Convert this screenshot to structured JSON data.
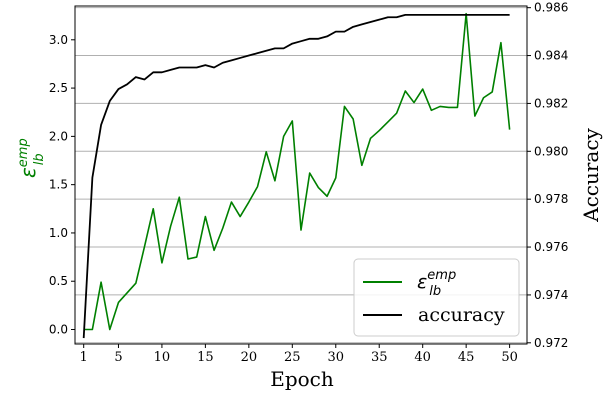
{
  "chart_data": {
    "type": "line",
    "xlabel": "Epoch",
    "ylabel_left": {
      "base": "ε",
      "sub": "lb",
      "sup": "emp",
      "color": "#008000"
    },
    "ylabel_right": "Accuracy",
    "xlim": [
      0,
      52
    ],
    "ylim_left": [
      -0.15,
      3.35
    ],
    "ylim_right": [
      0.97195,
      0.98607
    ],
    "x_ticks": [
      1,
      5,
      10,
      15,
      20,
      25,
      30,
      35,
      40,
      45,
      50
    ],
    "y_ticks_left": [
      "0.0",
      "0.5",
      "1.0",
      "1.5",
      "2.0",
      "2.5",
      "3.0"
    ],
    "y_ticks_right": [
      "0.972",
      "0.974",
      "0.976",
      "0.978",
      "0.980",
      "0.982",
      "0.984",
      "0.986"
    ],
    "grid": "horizontal (right axis ticks)",
    "legend_position": "bottom-right",
    "x": [
      1,
      2,
      3,
      4,
      5,
      6,
      7,
      8,
      9,
      10,
      11,
      12,
      13,
      14,
      15,
      16,
      17,
      18,
      19,
      20,
      21,
      22,
      23,
      24,
      25,
      26,
      27,
      28,
      29,
      30,
      31,
      32,
      33,
      34,
      35,
      36,
      37,
      38,
      39,
      40,
      41,
      42,
      43,
      44,
      45,
      46,
      47,
      48,
      49,
      50
    ],
    "series": [
      {
        "name": "ε_lb^emp",
        "legend": {
          "base": "ε",
          "sub": "lb",
          "sup": "emp"
        },
        "axis": "left",
        "color": "#008000",
        "values": [
          0.0,
          0.0,
          0.49,
          0.0,
          0.28,
          0.38,
          0.48,
          0.86,
          1.25,
          0.69,
          1.07,
          1.37,
          0.73,
          0.75,
          1.17,
          0.82,
          1.05,
          1.32,
          1.17,
          1.32,
          1.48,
          1.84,
          1.54,
          2.0,
          2.16,
          1.03,
          1.62,
          1.47,
          1.38,
          1.57,
          2.31,
          2.18,
          1.7,
          1.98,
          2.06,
          2.15,
          2.24,
          2.47,
          2.35,
          2.49,
          2.27,
          2.31,
          2.3,
          2.3,
          3.27,
          2.21,
          2.4,
          2.46,
          2.97,
          2.07
        ]
      },
      {
        "name": "accuracy",
        "axis": "right",
        "color": "#000000",
        "values": [
          0.9722,
          0.9789,
          0.9811,
          0.9821,
          0.9826,
          0.9828,
          0.9831,
          0.983,
          0.9833,
          0.9833,
          0.9834,
          0.9835,
          0.9835,
          0.9835,
          0.9836,
          0.9835,
          0.9837,
          0.9838,
          0.9839,
          0.984,
          0.9841,
          0.9842,
          0.9843,
          0.9843,
          0.9845,
          0.9846,
          0.9847,
          0.9847,
          0.9848,
          0.985,
          0.985,
          0.9852,
          0.9853,
          0.9854,
          0.9855,
          0.9856,
          0.9856,
          0.9857,
          0.9857,
          0.9857,
          0.9857,
          0.9857,
          0.9857,
          0.9857,
          0.9857,
          0.9857,
          0.9857,
          0.9857,
          0.9857,
          0.9857
        ]
      }
    ]
  }
}
